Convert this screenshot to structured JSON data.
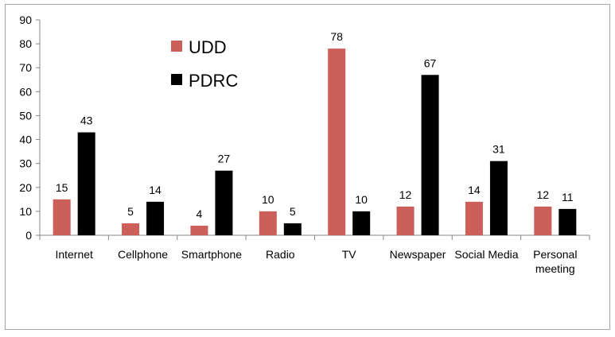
{
  "chart_data": {
    "type": "bar",
    "title": "",
    "xlabel": "",
    "ylabel": "",
    "ylim": [
      0,
      90
    ],
    "yticks": [
      0,
      10,
      20,
      30,
      40,
      50,
      60,
      70,
      80,
      90
    ],
    "grid": false,
    "legend_position": "top-left",
    "categories": [
      [
        "Internet"
      ],
      [
        "Cellphone"
      ],
      [
        "Smartphone"
      ],
      [
        "Radio"
      ],
      [
        "TV"
      ],
      [
        "Newspaper"
      ],
      [
        "Social Media"
      ],
      [
        "Personal",
        "meeting"
      ]
    ],
    "series": [
      {
        "name": "UDD",
        "color": "#cd5f5a",
        "values": [
          15,
          5,
          4,
          10,
          78,
          12,
          14,
          12
        ]
      },
      {
        "name": "PDRC",
        "color": "#000000",
        "values": [
          43,
          14,
          27,
          5,
          10,
          67,
          31,
          11
        ]
      }
    ]
  }
}
